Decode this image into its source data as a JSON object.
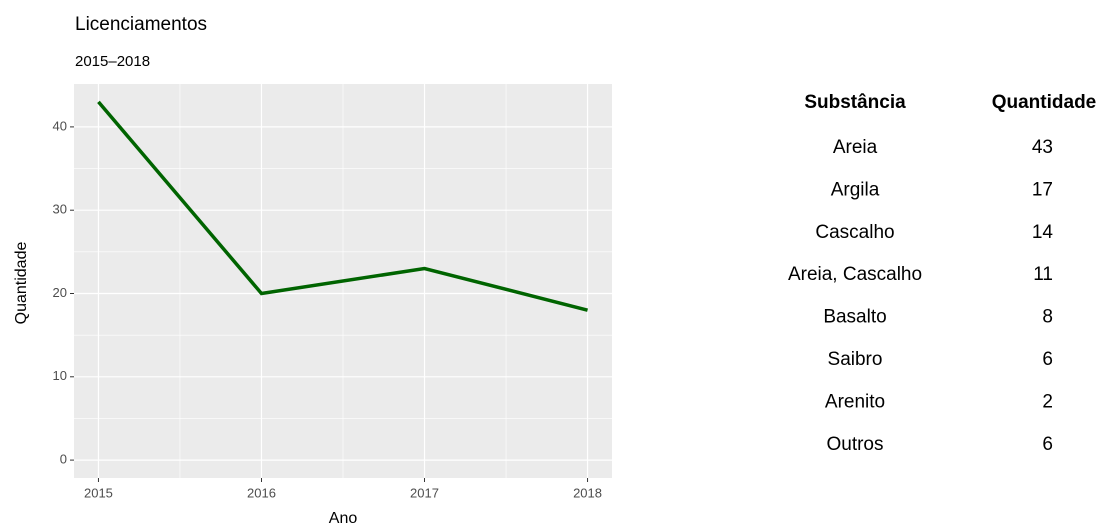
{
  "chart_data": {
    "type": "line",
    "title": "Licenciamentos",
    "subtitle": "2015–2018",
    "x_label": "Ano",
    "y_label": "Quantidade",
    "x": [
      2015,
      2016,
      2017,
      2018
    ],
    "series": [
      {
        "name": "Quantidade",
        "color": "#006400",
        "values": [
          43,
          20,
          23,
          18
        ]
      }
    ],
    "xlim": [
      2014.85,
      2018.15
    ],
    "xticks": [
      2015,
      2016,
      2017,
      2018
    ],
    "ylim": [
      -2.15,
      45.15
    ],
    "yticks": [
      0,
      10,
      20,
      30,
      40
    ],
    "grid": true
  },
  "table": {
    "header": [
      "Substância",
      "Quantidade"
    ],
    "rows": [
      [
        "Areia",
        43
      ],
      [
        "Argila",
        17
      ],
      [
        "Cascalho",
        14
      ],
      [
        "Areia, Cascalho",
        11
      ],
      [
        "Basalto",
        8
      ],
      [
        "Saibro",
        6
      ],
      [
        "Arenito",
        2
      ],
      [
        "Outros",
        6
      ]
    ]
  }
}
